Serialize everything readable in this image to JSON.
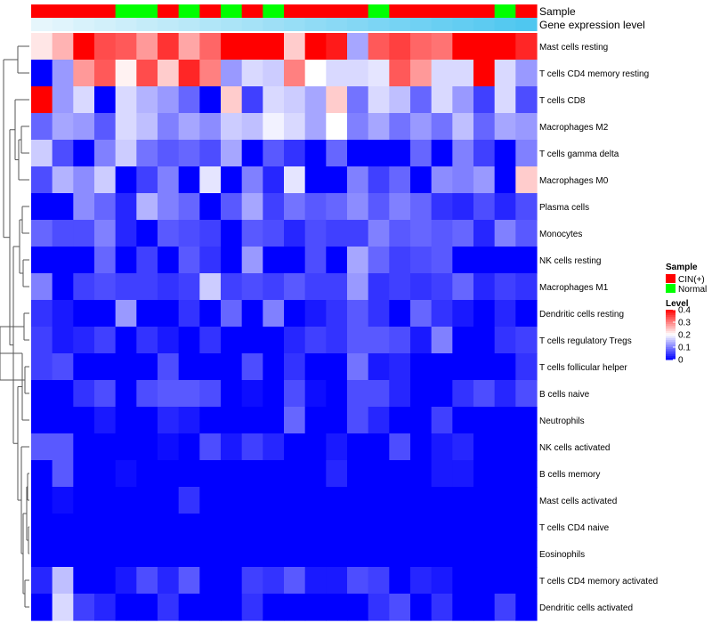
{
  "chart_data": {
    "type": "heatmap",
    "annotation_tracks": [
      {
        "name": "Sample",
        "values": [
          "CIN(+)",
          "CIN(+)",
          "CIN(+)",
          "CIN(+)",
          "Normal",
          "Normal",
          "CIN(+)",
          "Normal",
          "CIN(+)",
          "Normal",
          "CIN(+)",
          "Normal",
          "CIN(+)",
          "CIN(+)",
          "CIN(+)",
          "CIN(+)",
          "Normal",
          "CIN(+)",
          "CIN(+)",
          "CIN(+)",
          "CIN(+)",
          "CIN(+)",
          "Normal",
          "CIN(+)"
        ]
      },
      {
        "name": "Gene expression level",
        "values": [
          0.0,
          0.04,
          0.09,
          0.13,
          0.17,
          0.22,
          0.26,
          0.3,
          0.35,
          0.39,
          0.43,
          0.48,
          0.52,
          0.57,
          0.61,
          0.65,
          0.7,
          0.74,
          0.78,
          0.83,
          0.87,
          0.91,
          0.96,
          1.0
        ]
      }
    ],
    "rows": [
      {
        "name": "Mast cells resting",
        "values": [
          0.22,
          0.26,
          0.4,
          0.34,
          0.33,
          0.28,
          0.36,
          0.27,
          0.32,
          0.4,
          0.4,
          0.4,
          0.24,
          0.4,
          0.38,
          0.13,
          0.33,
          0.35,
          0.32,
          0.31,
          0.4,
          0.4,
          0.4,
          0.37
        ]
      },
      {
        "name": "T cells CD4 memory resting",
        "values": [
          0.0,
          0.12,
          0.28,
          0.33,
          0.21,
          0.34,
          0.24,
          0.37,
          0.3,
          0.12,
          0.17,
          0.16,
          0.3,
          0.2,
          0.17,
          0.17,
          0.18,
          0.33,
          0.28,
          0.17,
          0.17,
          0.4,
          0.17,
          0.12
        ]
      },
      {
        "name": "T cells CD8",
        "values": [
          0.4,
          0.12,
          0.17,
          0.0,
          0.17,
          0.14,
          0.12,
          0.08,
          0.0,
          0.24,
          0.05,
          0.17,
          0.16,
          0.13,
          0.24,
          0.09,
          0.17,
          0.15,
          0.08,
          0.17,
          0.12,
          0.05,
          0.17,
          0.06
        ]
      },
      {
        "name": "Macrophages M2",
        "values": [
          0.08,
          0.13,
          0.12,
          0.07,
          0.17,
          0.15,
          0.1,
          0.13,
          0.11,
          0.16,
          0.15,
          0.19,
          0.17,
          0.13,
          0.2,
          0.1,
          0.13,
          0.09,
          0.12,
          0.09,
          0.15,
          0.08,
          0.13,
          0.12
        ]
      },
      {
        "name": "T cells gamma delta",
        "values": [
          0.16,
          0.06,
          0.0,
          0.1,
          0.16,
          0.09,
          0.07,
          0.08,
          0.06,
          0.13,
          0.0,
          0.07,
          0.04,
          0.0,
          0.08,
          0.0,
          0.0,
          0.0,
          0.08,
          0.0,
          0.1,
          0.05,
          0.0,
          0.1
        ]
      },
      {
        "name": "Macrophages M0",
        "values": [
          0.06,
          0.14,
          0.11,
          0.16,
          0.0,
          0.05,
          0.1,
          0.0,
          0.18,
          0.0,
          0.1,
          0.03,
          0.18,
          0.0,
          0.0,
          0.1,
          0.05,
          0.08,
          0.0,
          0.11,
          0.1,
          0.12,
          0.0,
          0.24
        ]
      },
      {
        "name": "Plasma cells",
        "values": [
          0.0,
          0.0,
          0.11,
          0.08,
          0.03,
          0.14,
          0.1,
          0.08,
          0.0,
          0.07,
          0.13,
          0.05,
          0.09,
          0.07,
          0.08,
          0.11,
          0.07,
          0.1,
          0.08,
          0.04,
          0.03,
          0.06,
          0.03,
          0.06
        ]
      },
      {
        "name": "Monocytes",
        "values": [
          0.08,
          0.06,
          0.06,
          0.1,
          0.03,
          0.0,
          0.07,
          0.06,
          0.05,
          0.0,
          0.07,
          0.06,
          0.03,
          0.06,
          0.05,
          0.05,
          0.1,
          0.07,
          0.08,
          0.07,
          0.08,
          0.03,
          0.1,
          0.07
        ]
      },
      {
        "name": "NK cells resting",
        "values": [
          0.0,
          0.0,
          0.0,
          0.08,
          0.0,
          0.05,
          0.0,
          0.07,
          0.04,
          0.0,
          0.12,
          0.0,
          0.0,
          0.06,
          0.0,
          0.13,
          0.08,
          0.05,
          0.06,
          0.07,
          0.0,
          0.0,
          0.0,
          0.0
        ]
      },
      {
        "name": "Macrophages M1",
        "values": [
          0.1,
          0.0,
          0.05,
          0.06,
          0.05,
          0.05,
          0.04,
          0.05,
          0.16,
          0.05,
          0.06,
          0.05,
          0.07,
          0.05,
          0.05,
          0.12,
          0.04,
          0.05,
          0.04,
          0.05,
          0.08,
          0.03,
          0.05,
          0.04
        ]
      },
      {
        "name": "Dendritic cells resting",
        "values": [
          0.04,
          0.02,
          0.0,
          0.0,
          0.12,
          0.0,
          0.0,
          0.04,
          0.0,
          0.08,
          0.0,
          0.1,
          0.0,
          0.02,
          0.04,
          0.07,
          0.04,
          0.0,
          0.08,
          0.04,
          0.02,
          0.0,
          0.03,
          0.0
        ]
      },
      {
        "name": "T cells regulatory  Tregs",
        "values": [
          0.05,
          0.02,
          0.03,
          0.05,
          0.0,
          0.04,
          0.02,
          0.0,
          0.04,
          0.0,
          0.0,
          0.0,
          0.03,
          0.05,
          0.04,
          0.07,
          0.07,
          0.06,
          0.02,
          0.1,
          0.0,
          0.0,
          0.04,
          0.05
        ]
      },
      {
        "name": "T cells follicular helper",
        "values": [
          0.05,
          0.06,
          0.0,
          0.0,
          0.0,
          0.0,
          0.06,
          0.0,
          0.0,
          0.0,
          0.06,
          0.0,
          0.04,
          0.0,
          0.0,
          0.09,
          0.02,
          0.03,
          0.0,
          0.0,
          0.0,
          0.0,
          0.0,
          0.04
        ]
      },
      {
        "name": "B cells naive",
        "values": [
          0.0,
          0.0,
          0.04,
          0.06,
          0.0,
          0.06,
          0.07,
          0.07,
          0.06,
          0.0,
          0.01,
          0.0,
          0.06,
          0.01,
          0.0,
          0.06,
          0.06,
          0.03,
          0.0,
          0.0,
          0.04,
          0.06,
          0.03,
          0.06
        ]
      },
      {
        "name": "Neutrophils",
        "values": [
          0.0,
          0.0,
          0.0,
          0.02,
          0.0,
          0.0,
          0.03,
          0.02,
          0.0,
          0.0,
          0.0,
          0.0,
          0.08,
          0.0,
          0.0,
          0.06,
          0.03,
          0.0,
          0.0,
          0.05,
          0.0,
          0.0,
          0.0,
          0.0
        ]
      },
      {
        "name": "NK cells activated",
        "values": [
          0.07,
          0.07,
          0.0,
          0.0,
          0.0,
          0.0,
          0.01,
          0.0,
          0.06,
          0.02,
          0.05,
          0.03,
          0.0,
          0.0,
          0.02,
          0.0,
          0.0,
          0.06,
          0.0,
          0.02,
          0.03,
          0.0,
          0.0,
          0.0
        ]
      },
      {
        "name": "B cells memory",
        "values": [
          0.0,
          0.07,
          0.0,
          0.0,
          0.01,
          0.0,
          0.0,
          0.0,
          0.0,
          0.0,
          0.0,
          0.0,
          0.0,
          0.0,
          0.03,
          0.0,
          0.0,
          0.0,
          0.0,
          0.02,
          0.02,
          0.0,
          0.0,
          0.0
        ]
      },
      {
        "name": "Mast cells activated",
        "values": [
          0.0,
          0.01,
          0.0,
          0.0,
          0.0,
          0.0,
          0.0,
          0.04,
          0.0,
          0.0,
          0.0,
          0.0,
          0.0,
          0.0,
          0.0,
          0.0,
          0.0,
          0.0,
          0.0,
          0.0,
          0.0,
          0.0,
          0.0,
          0.0
        ]
      },
      {
        "name": "T cells CD4 naive",
        "values": [
          0.0,
          0.0,
          0.0,
          0.0,
          0.0,
          0.0,
          0.0,
          0.0,
          0.0,
          0.0,
          0.0,
          0.0,
          0.0,
          0.0,
          0.0,
          0.0,
          0.0,
          0.0,
          0.0,
          0.0,
          0.0,
          0.0,
          0.0,
          0.0
        ]
      },
      {
        "name": "Eosinophils",
        "values": [
          0.0,
          0.0,
          0.0,
          0.0,
          0.0,
          0.0,
          0.0,
          0.0,
          0.0,
          0.0,
          0.0,
          0.0,
          0.0,
          0.0,
          0.0,
          0.0,
          0.0,
          0.0,
          0.0,
          0.0,
          0.0,
          0.0,
          0.0,
          0.0
        ]
      },
      {
        "name": "T cells CD4 memory activated",
        "values": [
          0.03,
          0.15,
          0.0,
          0.0,
          0.02,
          0.06,
          0.03,
          0.07,
          0.0,
          0.0,
          0.05,
          0.04,
          0.07,
          0.02,
          0.02,
          0.06,
          0.05,
          0.0,
          0.03,
          0.02,
          0.0,
          0.0,
          0.0,
          0.0
        ]
      },
      {
        "name": "Dendritic cells activated",
        "values": [
          0.0,
          0.17,
          0.05,
          0.03,
          0.0,
          0.0,
          0.04,
          0.0,
          0.0,
          0.0,
          0.04,
          0.0,
          0.0,
          0.0,
          0.0,
          0.0,
          0.04,
          0.06,
          0.0,
          0.04,
          0.0,
          0.0,
          0.05,
          0.0
        ]
      }
    ],
    "legend": {
      "sample_title": "Sample",
      "sample_items": [
        {
          "label": "CIN(+)",
          "color": "#ff0000"
        },
        {
          "label": "Normal",
          "color": "#00ff00"
        }
      ],
      "level_title": "Level",
      "level_ticks": [
        "0.4",
        "0.3",
        "0.2",
        "0.1",
        "0"
      ],
      "level_range": [
        0,
        0.4
      ]
    },
    "colors": {
      "low": "#0000ff",
      "mid": "#ffffff",
      "high": "#ff0000",
      "gene_level_low": "#e6f6fc",
      "gene_level_high": "#4fc7f0"
    }
  }
}
